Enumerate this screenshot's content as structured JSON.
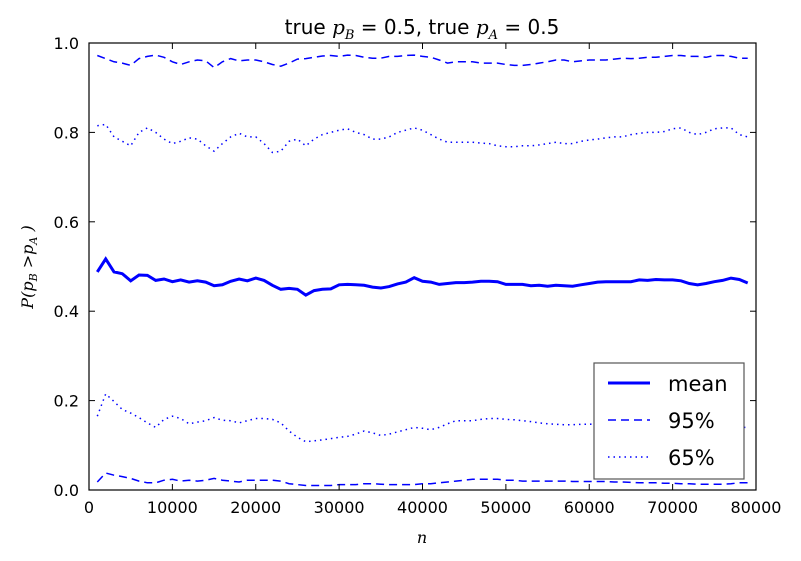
{
  "chart_data": {
    "type": "line",
    "title_parts": {
      "prefix": "true ",
      "pb_main": "p",
      "pb_sub": "B",
      "middle": " = 0.5, true ",
      "pa_main": "p",
      "pa_sub": "A",
      "suffix": " = 0.5"
    },
    "xlabel": "n",
    "ylabel_parts": {
      "open": "P(",
      "pb_main": "p",
      "pb_sub": "B",
      "gt": " >",
      "pa_main": "p",
      "pa_sub": "A",
      "close": " )"
    },
    "xlim": [
      0,
      80000
    ],
    "ylim": [
      0.0,
      1.0
    ],
    "xticks": [
      0,
      10000,
      20000,
      30000,
      40000,
      50000,
      60000,
      70000,
      80000
    ],
    "xtick_labels": [
      "0",
      "10000",
      "20000",
      "30000",
      "40000",
      "50000",
      "60000",
      "70000",
      "80000"
    ],
    "yticks": [
      0.0,
      0.2,
      0.4,
      0.6,
      0.8,
      1.0
    ],
    "ytick_labels": [
      "0.0",
      "0.2",
      "0.4",
      "0.6",
      "0.8",
      "1.0"
    ],
    "grid": false,
    "legend_position": "lower-right",
    "x": [
      1000,
      2000,
      3000,
      4000,
      5000,
      6000,
      7000,
      8000,
      9000,
      10000,
      11000,
      12000,
      13000,
      14000,
      15000,
      16000,
      17000,
      18000,
      19000,
      20000,
      21000,
      22000,
      23000,
      24000,
      25000,
      26000,
      27000,
      28000,
      29000,
      30000,
      31000,
      32000,
      33000,
      34000,
      35000,
      36000,
      37000,
      38000,
      39000,
      40000,
      41000,
      42000,
      43000,
      44000,
      45000,
      46000,
      47000,
      48000,
      49000,
      50000,
      51000,
      52000,
      53000,
      54000,
      55000,
      56000,
      57000,
      58000,
      59000,
      60000,
      61000,
      62000,
      63000,
      64000,
      65000,
      66000,
      67000,
      68000,
      69000,
      70000,
      71000,
      72000,
      73000,
      74000,
      75000,
      76000,
      77000,
      78000,
      79000
    ],
    "series": [
      {
        "name": "mean",
        "style": "solid",
        "color": "#0000ff",
        "values": [
          0.488,
          0.517,
          0.488,
          0.484,
          0.468,
          0.481,
          0.48,
          0.469,
          0.472,
          0.466,
          0.47,
          0.465,
          0.468,
          0.465,
          0.457,
          0.459,
          0.467,
          0.472,
          0.468,
          0.474,
          0.469,
          0.458,
          0.449,
          0.451,
          0.449,
          0.436,
          0.446,
          0.449,
          0.45,
          0.459,
          0.46,
          0.459,
          0.458,
          0.454,
          0.452,
          0.455,
          0.461,
          0.465,
          0.475,
          0.467,
          0.465,
          0.46,
          0.462,
          0.464,
          0.464,
          0.465,
          0.467,
          0.467,
          0.466,
          0.46,
          0.46,
          0.46,
          0.457,
          0.458,
          0.456,
          0.458,
          0.457,
          0.456,
          0.459,
          0.462,
          0.465,
          0.466,
          0.466,
          0.466,
          0.466,
          0.47,
          0.469,
          0.471,
          0.47,
          0.47,
          0.468,
          0.462,
          0.459,
          0.462,
          0.466,
          0.469,
          0.474,
          0.471,
          0.463
        ]
      },
      {
        "name": "95%",
        "style": "dashed",
        "color": "#0000ff",
        "values": [
          0.972,
          0.965,
          0.958,
          0.955,
          0.95,
          0.965,
          0.97,
          0.973,
          0.968,
          0.958,
          0.952,
          0.958,
          0.962,
          0.96,
          0.945,
          0.958,
          0.965,
          0.96,
          0.962,
          0.962,
          0.958,
          0.952,
          0.948,
          0.955,
          0.964,
          0.965,
          0.968,
          0.971,
          0.972,
          0.97,
          0.973,
          0.972,
          0.968,
          0.966,
          0.966,
          0.97,
          0.97,
          0.972,
          0.973,
          0.97,
          0.968,
          0.962,
          0.955,
          0.958,
          0.958,
          0.958,
          0.955,
          0.955,
          0.955,
          0.952,
          0.95,
          0.95,
          0.952,
          0.955,
          0.958,
          0.962,
          0.962,
          0.958,
          0.96,
          0.962,
          0.962,
          0.962,
          0.964,
          0.966,
          0.965,
          0.966,
          0.968,
          0.968,
          0.97,
          0.972,
          0.972,
          0.97,
          0.97,
          0.968,
          0.972,
          0.972,
          0.97,
          0.966,
          0.966
        ]
      },
      {
        "name": "95%-lower",
        "style": "dashed",
        "color": "#0000ff",
        "values": [
          0.018,
          0.038,
          0.033,
          0.03,
          0.026,
          0.02,
          0.016,
          0.016,
          0.022,
          0.024,
          0.02,
          0.022,
          0.02,
          0.022,
          0.026,
          0.022,
          0.02,
          0.018,
          0.022,
          0.022,
          0.022,
          0.022,
          0.02,
          0.014,
          0.012,
          0.01,
          0.01,
          0.01,
          0.01,
          0.012,
          0.012,
          0.012,
          0.014,
          0.014,
          0.013,
          0.012,
          0.012,
          0.012,
          0.012,
          0.014,
          0.014,
          0.016,
          0.018,
          0.02,
          0.022,
          0.024,
          0.024,
          0.024,
          0.024,
          0.022,
          0.022,
          0.02,
          0.02,
          0.02,
          0.02,
          0.02,
          0.02,
          0.019,
          0.019,
          0.019,
          0.019,
          0.019,
          0.018,
          0.018,
          0.017,
          0.016,
          0.016,
          0.016,
          0.015,
          0.015,
          0.014,
          0.014,
          0.013,
          0.013,
          0.013,
          0.013,
          0.014,
          0.016,
          0.016
        ]
      },
      {
        "name": "65%",
        "style": "dotted",
        "color": "#0000ff",
        "values": [
          0.815,
          0.818,
          0.79,
          0.78,
          0.77,
          0.8,
          0.81,
          0.8,
          0.785,
          0.775,
          0.78,
          0.788,
          0.785,
          0.77,
          0.758,
          0.775,
          0.79,
          0.798,
          0.79,
          0.79,
          0.775,
          0.755,
          0.758,
          0.78,
          0.785,
          0.77,
          0.785,
          0.795,
          0.8,
          0.805,
          0.808,
          0.8,
          0.795,
          0.785,
          0.785,
          0.79,
          0.8,
          0.805,
          0.81,
          0.805,
          0.795,
          0.785,
          0.778,
          0.778,
          0.778,
          0.778,
          0.776,
          0.775,
          0.77,
          0.768,
          0.768,
          0.77,
          0.77,
          0.772,
          0.775,
          0.778,
          0.775,
          0.775,
          0.78,
          0.783,
          0.785,
          0.788,
          0.79,
          0.79,
          0.795,
          0.798,
          0.8,
          0.8,
          0.802,
          0.808,
          0.81,
          0.8,
          0.795,
          0.8,
          0.808,
          0.81,
          0.81,
          0.795,
          0.79
        ]
      },
      {
        "name": "65%-lower",
        "style": "dotted",
        "color": "#0000ff",
        "values": [
          0.165,
          0.215,
          0.198,
          0.18,
          0.172,
          0.162,
          0.15,
          0.14,
          0.158,
          0.165,
          0.16,
          0.148,
          0.152,
          0.155,
          0.162,
          0.156,
          0.155,
          0.15,
          0.155,
          0.16,
          0.16,
          0.158,
          0.15,
          0.132,
          0.118,
          0.108,
          0.11,
          0.112,
          0.115,
          0.118,
          0.12,
          0.125,
          0.132,
          0.128,
          0.122,
          0.125,
          0.13,
          0.135,
          0.14,
          0.138,
          0.135,
          0.14,
          0.148,
          0.155,
          0.155,
          0.155,
          0.158,
          0.16,
          0.16,
          0.158,
          0.157,
          0.155,
          0.153,
          0.15,
          0.148,
          0.147,
          0.146,
          0.146,
          0.147,
          0.147,
          0.148,
          0.148,
          0.147,
          0.147,
          0.146,
          0.145,
          0.144,
          0.143,
          0.142,
          0.14,
          0.14,
          0.14,
          0.14,
          0.14,
          0.14,
          0.14,
          0.14,
          0.14,
          0.14
        ]
      }
    ],
    "legend": [
      {
        "label": "mean",
        "style": "solid"
      },
      {
        "label": "95%",
        "style": "dashed"
      },
      {
        "label": "65%",
        "style": "dotted"
      }
    ]
  }
}
